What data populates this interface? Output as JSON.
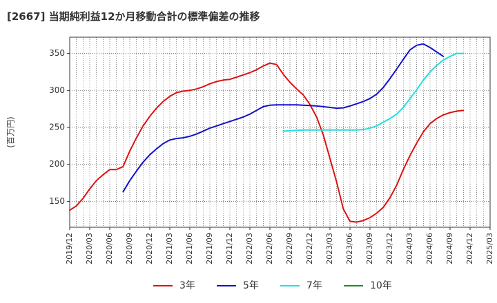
{
  "chart_data": {
    "type": "line",
    "title": "[2667]  当期純利益12か月移動合計の標準偏差の推移",
    "xlabel": "",
    "ylabel": "(百万円)",
    "ylim": [
      115,
      372
    ],
    "yticks": [
      150,
      200,
      250,
      300,
      350
    ],
    "xlim": [
      0,
      63
    ],
    "xtick_labels": [
      "2019/12",
      "2020/03",
      "2020/06",
      "2020/09",
      "2020/12",
      "2021/03",
      "2021/06",
      "2021/09",
      "2021/12",
      "2022/03",
      "2022/06",
      "2022/09",
      "2022/12",
      "2023/03",
      "2023/06",
      "2023/09",
      "2023/12",
      "2024/03",
      "2024/06",
      "2024/09",
      "2024/12",
      "2025/03"
    ],
    "grid": true,
    "legend_position": "bottom-center",
    "series": [
      {
        "name": "3年",
        "color": "#dd1111",
        "start_index": 0,
        "values": [
          138,
          144,
          154,
          167,
          178,
          186,
          193,
          193,
          197,
          218,
          236,
          252,
          265,
          276,
          285,
          292,
          297,
          299,
          300,
          302,
          305,
          309,
          312,
          314,
          315,
          318,
          321,
          324,
          328,
          333,
          337,
          335,
          322,
          311,
          302,
          294,
          281,
          264,
          240,
          208,
          176,
          140,
          123,
          122,
          124,
          128,
          134,
          142,
          155,
          172,
          193,
          212,
          229,
          244,
          255,
          262,
          267,
          270,
          272,
          273
        ]
      },
      {
        "name": "5年",
        "color": "#1111cc",
        "start_index": 8,
        "values": [
          163,
          178,
          191,
          203,
          213,
          221,
          228,
          233,
          235,
          236,
          238,
          241,
          245,
          249,
          252,
          255,
          258,
          261,
          264,
          268,
          273,
          278,
          280,
          280.5,
          280.5,
          280.5,
          280.5,
          280,
          279.5,
          279,
          278,
          277,
          276,
          276.5,
          279,
          282,
          285,
          289,
          295,
          304,
          316,
          329,
          342,
          355,
          361,
          363,
          358,
          352,
          346
        ]
      },
      {
        "name": "7年",
        "color": "#22dddd",
        "start_index": 32,
        "values": [
          245,
          245.5,
          246,
          246.5,
          246.5,
          246.5,
          246.5,
          246.5,
          246.5,
          246.5,
          246.5,
          246.5,
          247,
          249,
          252,
          257,
          262,
          268,
          277,
          289,
          301,
          314,
          325,
          334,
          341,
          346,
          350,
          350
        ]
      },
      {
        "name": "10年",
        "color": "#228822",
        "start_index": 0,
        "values": []
      }
    ]
  }
}
